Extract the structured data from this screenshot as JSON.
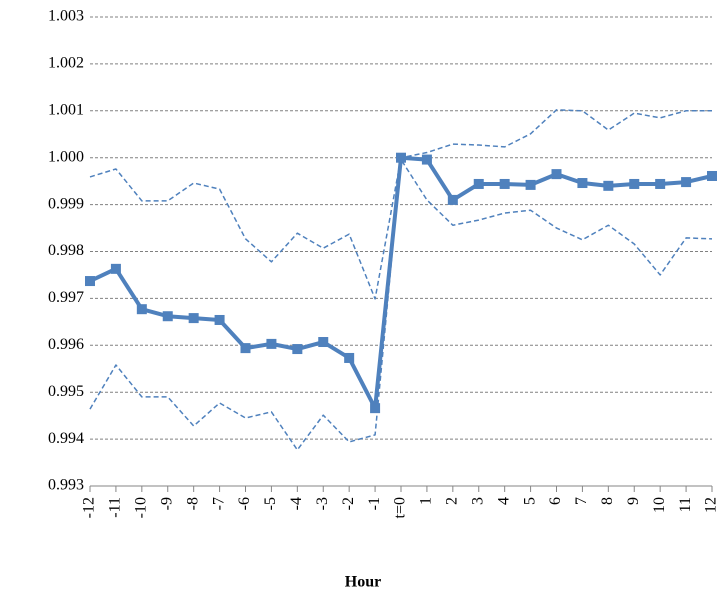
{
  "chart_data": {
    "type": "line",
    "x_label": "Hour",
    "categories": [
      "-12",
      "-11",
      "-10",
      "-9",
      "-8",
      "-7",
      "-6",
      "-5",
      "-4",
      "-3",
      "-2",
      "-1",
      "t=0",
      "1",
      "2",
      "3",
      "4",
      "5",
      "6",
      "7",
      "8",
      "9",
      "10",
      "11",
      "12"
    ],
    "series": [
      {
        "color": "#4f81bd",
        "dashed": true,
        "markers": false,
        "values": [
          0.99959,
          0.99976,
          0.99908,
          0.99908,
          0.99946,
          0.99933,
          0.99827,
          0.99778,
          0.99839,
          0.99807,
          0.99837,
          0.99699,
          1.0,
          1.00011,
          1.00029,
          1.00027,
          1.00023,
          1.00051,
          1.00102,
          1.001,
          1.00059,
          1.00095,
          1.00085,
          1.001,
          1.001
        ]
      },
      {
        "color": "#4f81bd",
        "dashed": true,
        "markers": false,
        "values": [
          0.99464,
          0.99558,
          0.9949,
          0.9949,
          0.99428,
          0.99477,
          0.99445,
          0.99458,
          0.99377,
          0.99451,
          0.99394,
          0.99409,
          0.99996,
          0.9991,
          0.99856,
          0.99867,
          0.99882,
          0.99888,
          0.9985,
          0.99825,
          0.99856,
          0.99816,
          0.9975,
          0.99829,
          0.99827
        ]
      },
      {
        "color": "#4f81bd",
        "dashed": false,
        "markers": true,
        "values": [
          0.99737,
          0.99763,
          0.99677,
          0.99662,
          0.99658,
          0.99654,
          0.99594,
          0.99603,
          0.99592,
          0.99607,
          0.99573,
          0.99466,
          1.0,
          0.99996,
          0.9991,
          0.99944,
          0.99944,
          0.99942,
          0.99965,
          0.99946,
          0.9994,
          0.99944,
          0.99944,
          0.99948,
          0.99961
        ]
      }
    ],
    "ylim": [
      0.993,
      1.003
    ],
    "yticks": [
      0.993,
      0.994,
      0.995,
      0.996,
      0.997,
      0.998,
      0.999,
      {
        "value": 1,
        "label": "1.000"
      },
      1.001,
      1.002,
      1.003
    ],
    "grid": true
  }
}
